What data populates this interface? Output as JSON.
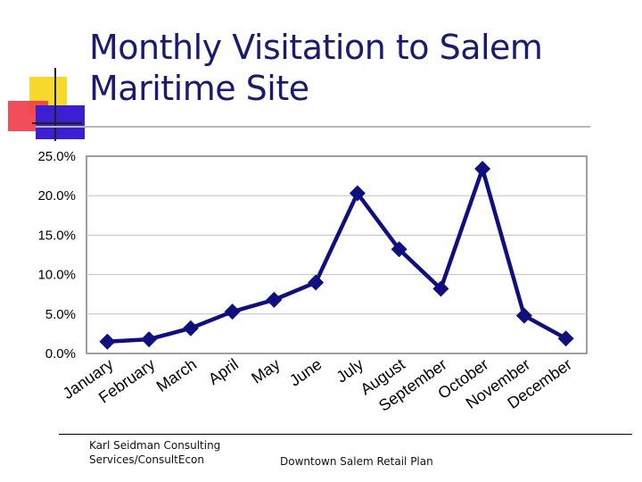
{
  "slide": {
    "title_line1": "Monthly Visitation to Salem",
    "title_line2": "Maritime Site",
    "footer_left_line1": "Karl Seidman Consulting",
    "footer_left_line2": "Services/ConsultEcon",
    "footer_center": "Downtown Salem Retail Plan"
  },
  "colors": {
    "series": "#0f0f7d",
    "title": "#1a1a6e",
    "deco_yellow": "#f7d92b",
    "deco_red": "#ef3a4b",
    "deco_blue": "#3b1fd0"
  },
  "chart_data": {
    "type": "line",
    "title": "",
    "xlabel": "",
    "ylabel": "",
    "categories": [
      "January",
      "February",
      "March",
      "April",
      "May",
      "June",
      "July",
      "August",
      "September",
      "October",
      "November",
      "December"
    ],
    "series": [
      {
        "name": "",
        "values": [
          1.5,
          1.8,
          3.2,
          5.3,
          6.8,
          9.0,
          20.3,
          13.2,
          8.2,
          23.4,
          4.8,
          1.9
        ]
      }
    ],
    "ylim": [
      0,
      25
    ],
    "yticks": [
      "0.0%",
      "5.0%",
      "10.0%",
      "15.0%",
      "20.0%",
      "25.0%"
    ],
    "ytick_values": [
      0,
      5,
      10,
      15,
      20,
      25
    ],
    "grid": true,
    "legend": "none",
    "marker": "diamond"
  }
}
